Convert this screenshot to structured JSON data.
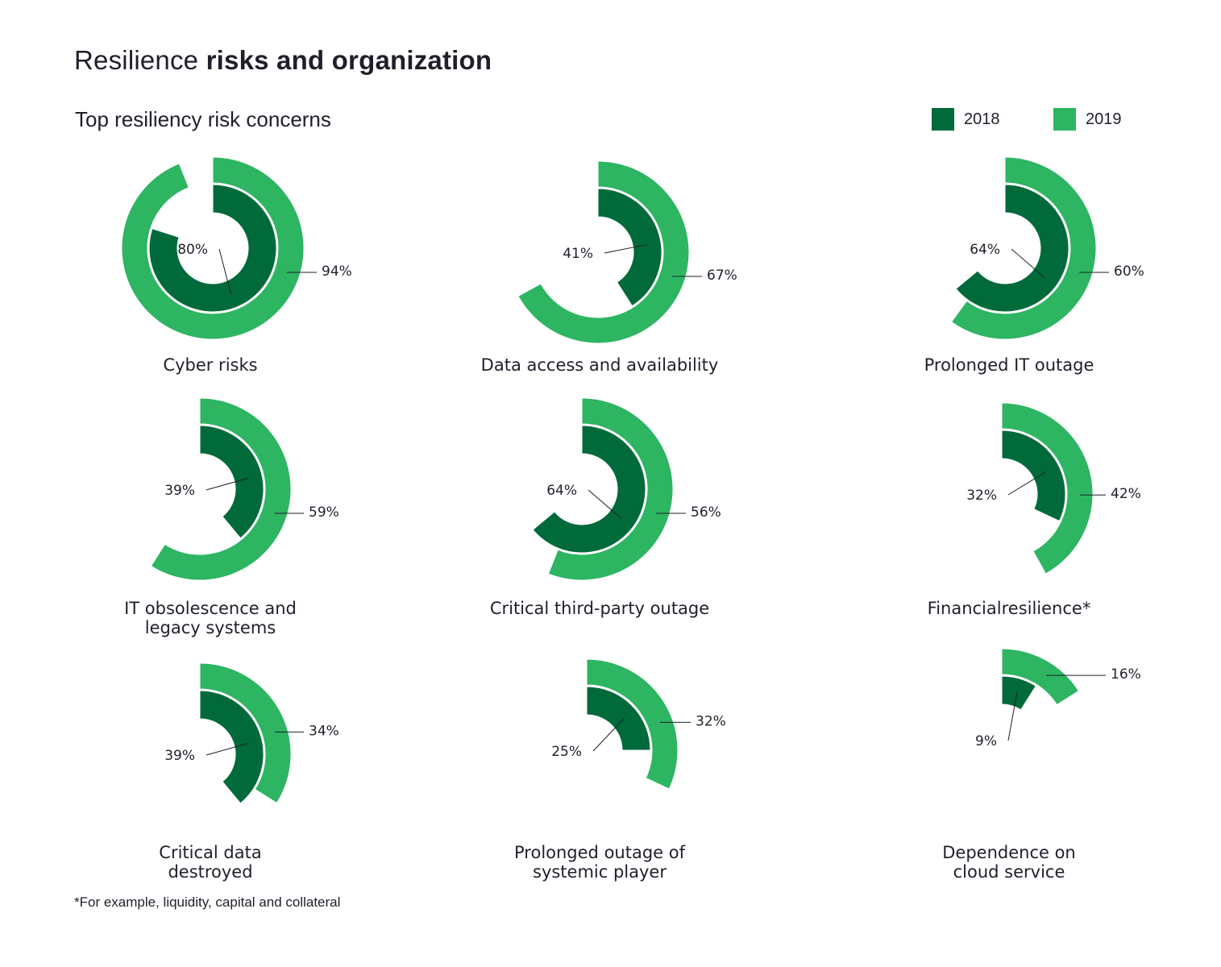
{
  "page_title_regular": "Resilience ",
  "page_title_bold": "risks and organization",
  "chart_data": {
    "type": "radial-bar",
    "title": "Top resiliency risk concerns",
    "legend": [
      {
        "label": "2018",
        "color": "#006a3b"
      },
      {
        "label": "2019",
        "color": "#2db562"
      }
    ],
    "categories": [
      {
        "label": [
          "Cyber risks"
        ],
        "value_2018": 80,
        "value_2019": 94
      },
      {
        "label": [
          "Data access and availability"
        ],
        "value_2018": 41,
        "value_2019": 67
      },
      {
        "label": [
          "Prolonged IT outage"
        ],
        "value_2018": 64,
        "value_2019": 60
      },
      {
        "label": [
          "IT obsolescence and",
          "legacy systems"
        ],
        "value_2018": 39,
        "value_2019": 59
      },
      {
        "label": [
          "Critical third-party outage"
        ],
        "value_2018": 64,
        "value_2019": 56
      },
      {
        "label": [
          "Financialresilience*"
        ],
        "value_2018": 32,
        "value_2019": 42
      },
      {
        "label": [
          "Critical data",
          "destroyed"
        ],
        "value_2018": 39,
        "value_2019": 34
      },
      {
        "label": [
          "Prolonged outage of",
          "systemic player"
        ],
        "value_2018": 25,
        "value_2019": 32
      },
      {
        "label": [
          "Dependence on",
          "cloud service"
        ],
        "value_2018": 9,
        "value_2019": 16
      }
    ],
    "value_suffix": "%"
  },
  "footnote": "*For example, liquidity, capital and collateral"
}
